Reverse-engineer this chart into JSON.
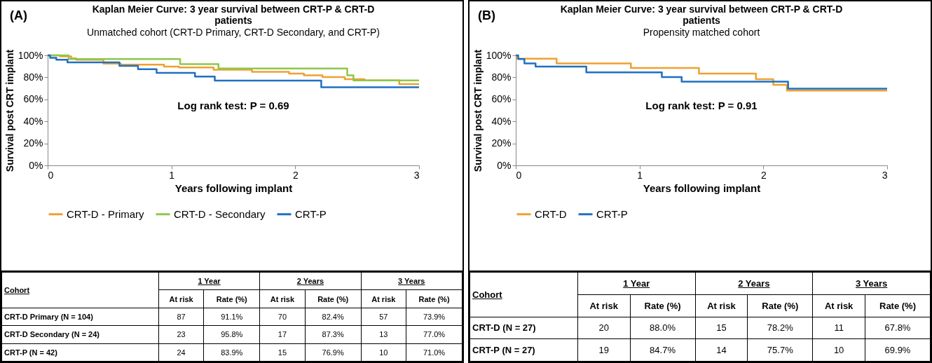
{
  "chart_data": [
    {
      "type": "step",
      "title": "Kaplan Meier Curve: 3 year survival between CRT-P & CRT-D patients",
      "subtitle": "Unmatched cohort (CRT-D Primary, CRT-D Secondary, and CRT-P)",
      "xlabel": "Years following implant",
      "ylabel": "Survival post CRT implant",
      "annotations": [
        "(A)",
        "Log rank test: P = 0.69"
      ],
      "xlim": [
        0,
        3
      ],
      "xticks": [
        0,
        1,
        2,
        3
      ],
      "ylim": [
        0,
        100
      ],
      "yticks": [
        {
          "value": 0,
          "label": "0%"
        },
        {
          "value": 20,
          "label": "20%"
        },
        {
          "value": 40,
          "label": "40%"
        },
        {
          "value": 60,
          "label": "60%"
        },
        {
          "value": 80,
          "label": "80%"
        },
        {
          "value": 100,
          "label": "100%"
        }
      ],
      "grid": false,
      "legend": "bottom",
      "marker": "none",
      "line_style": "solid",
      "series": [
        {
          "name": "CRT-D - Primary",
          "color": "#f0a030",
          "x": [
            0,
            0.1,
            0.19,
            0.23,
            0.45,
            0.59,
            0.94,
            1.06,
            1.34,
            1.65,
            1.95,
            2.07,
            2.22,
            2.4,
            2.56,
            2.84,
            3
          ],
          "values": [
            100,
            99,
            97.3,
            96,
            92.5,
            91.6,
            89.8,
            89,
            87,
            85,
            83.4,
            81.8,
            80.2,
            78.4,
            77.3,
            73.9,
            73.9
          ]
        },
        {
          "name": "CRT-D - Secondary",
          "color": "#8cc84b",
          "x": [
            0,
            0.17,
            1.07,
            1.38,
            2.42,
            2.47,
            3
          ],
          "values": [
            100,
            96.6,
            92,
            88,
            81.8,
            77.3,
            77.3
          ]
        },
        {
          "name": "CRT-P",
          "color": "#1f70c1",
          "x": [
            0,
            0.02,
            0.07,
            0.16,
            0.58,
            0.73,
            0.88,
            1.19,
            1.35,
            2.21,
            3
          ],
          "values": [
            100,
            97.7,
            96,
            93.6,
            90.5,
            87.5,
            84,
            80.7,
            77,
            71,
            71
          ]
        }
      ]
    },
    {
      "type": "other",
      "ylabel": "Cohort",
      "annotations": [
        "1 Year",
        "2 Years",
        "3 Years"
      ],
      "categories": [
        "At risk",
        "Rate (%)",
        "At risk",
        "Rate (%)",
        "At risk",
        "Rate (%)"
      ],
      "y_categories": [
        "CRT-D Primary (N = 104)",
        "CRT-D Secondary (N = 24)",
        "CRT-P (N = 42)"
      ],
      "cell_labels": [
        [
          "87",
          "91.1%",
          "70",
          "82.4%",
          "57",
          "73.9%"
        ],
        [
          "23",
          "95.8%",
          "17",
          "87.3%",
          "13",
          "77.0%"
        ],
        [
          "24",
          "83.9%",
          "15",
          "76.9%",
          "10",
          "71.0%"
        ]
      ]
    },
    {
      "type": "step",
      "title": "Kaplan Meier Curve: 3 year survival between CRT-P & CRT-D patients",
      "subtitle": "Propensity matched cohort",
      "xlabel": "Years following implant",
      "ylabel": "Survival post CRT implant",
      "annotations": [
        "(B)",
        "Log rank test: P = 0.91"
      ],
      "xlim": [
        0,
        3
      ],
      "xticks": [
        0,
        1,
        2,
        3
      ],
      "ylim": [
        0,
        100
      ],
      "yticks": [
        {
          "value": 0,
          "label": "0%"
        },
        {
          "value": 20,
          "label": "20%"
        },
        {
          "value": 40,
          "label": "40%"
        },
        {
          "value": 60,
          "label": "60%"
        },
        {
          "value": 80,
          "label": "80%"
        },
        {
          "value": 100,
          "label": "100%"
        }
      ],
      "grid": false,
      "legend": "bottom",
      "marker": "none",
      "line_style": "solid",
      "series": [
        {
          "name": "CRT-D",
          "color": "#f0a030",
          "x": [
            0,
            0.01,
            0.33,
            0.93,
            1.48,
            1.94,
            2.08,
            2.19,
            3
          ],
          "values": [
            100,
            97,
            92.7,
            88.6,
            83.4,
            78.4,
            73.2,
            68,
            68
          ]
        },
        {
          "name": "CRT-P",
          "color": "#1f70c1",
          "x": [
            0,
            0.02,
            0.07,
            0.16,
            0.57,
            1.18,
            1.34,
            2.2,
            3
          ],
          "values": [
            100,
            96.6,
            92.7,
            89.8,
            84.5,
            80.2,
            76.1,
            69.8,
            69.8
          ]
        }
      ]
    },
    {
      "type": "other",
      "ylabel": "Cohort",
      "annotations": [
        "1 Year",
        "2 Years",
        "3 Years"
      ],
      "categories": [
        "At risk",
        "Rate (%)",
        "At risk",
        "Rate (%)",
        "At risk",
        "Rate (%)"
      ],
      "y_categories": [
        "CRT-D (N = 27)",
        "CRT-P (N = 27)"
      ],
      "cell_labels": [
        [
          "20",
          "88.0%",
          "15",
          "78.2%",
          "11",
          "67.8%"
        ],
        [
          "19",
          "84.7%",
          "14",
          "75.7%",
          "10",
          "69.9%"
        ]
      ]
    }
  ]
}
